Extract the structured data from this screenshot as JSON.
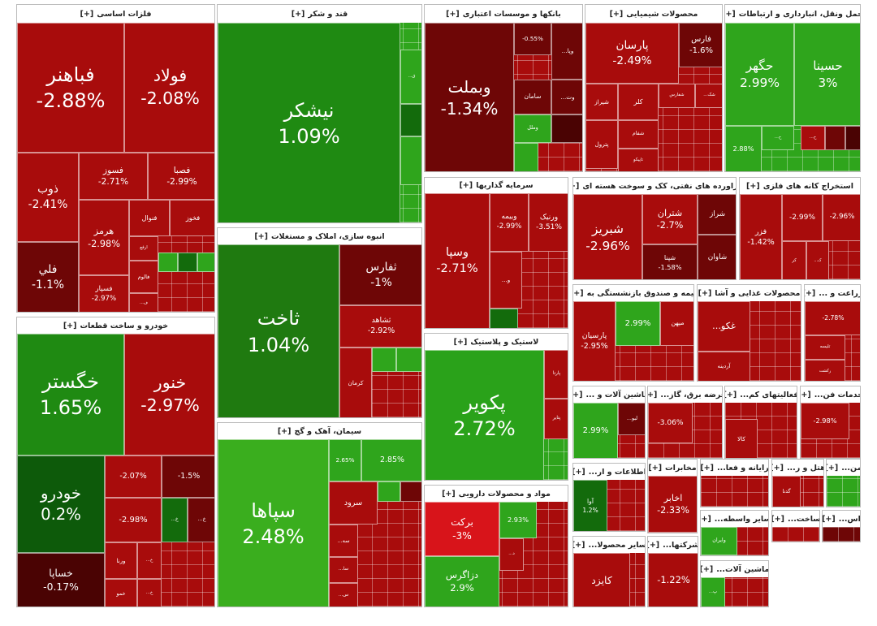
{
  "expand_label": "[+]",
  "sectors": [
    {
      "title": "فلزات اساسی",
      "tiles": [
        {
          "name": "فباهنر",
          "change": "-2.88%"
        },
        {
          "name": "فولاد",
          "change": "-2.08%"
        },
        {
          "name": "ذوب",
          "change": "-2.41%"
        },
        {
          "name": "فسوز",
          "change": "-2.71%"
        },
        {
          "name": "فصبا",
          "change": "-2.99%"
        },
        {
          "name": "هرمز",
          "change": "-2.98%"
        },
        {
          "name": "فنوال"
        },
        {
          "name": "فخوز"
        },
        {
          "name": "ارفع"
        },
        {
          "name": "فالوم"
        },
        {
          "name": "فلي",
          "change": "-1.1%"
        },
        {
          "name": "فسپار",
          "change": "-2.97%"
        },
        {
          "name": "ف..."
        }
      ]
    },
    {
      "title": "خودرو و ساخت قطعات",
      "tiles": [
        {
          "name": "خگستر",
          "change": "1.65%"
        },
        {
          "name": "خنور",
          "change": "-2.97%"
        },
        {
          "name": "خودرو",
          "change": "0.2%"
        },
        {
          "name": "خساپا",
          "change": "-0.17%"
        },
        {
          "change": "-2.07%"
        },
        {
          "change": "-1.5%"
        },
        {
          "change": "-2.98%"
        },
        {
          "name": "خ..."
        },
        {
          "name": "خ..."
        },
        {
          "name": "ورنا"
        },
        {
          "name": "خ..."
        },
        {
          "name": "خمو"
        },
        {
          "name": "خ..."
        }
      ]
    },
    {
      "title": "قند و شکر",
      "tiles": [
        {
          "name": "نیشکر",
          "change": "1.09%"
        },
        {
          "name": "ق..."
        }
      ]
    },
    {
      "title": "انبوه سازی، املاک و مستغلات",
      "tiles": [
        {
          "name": "ثاخت",
          "change": "1.04%"
        },
        {
          "name": "ثفارس",
          "change": "-1%"
        },
        {
          "name": "ثشاهد",
          "change": "-2.92%"
        },
        {
          "name": "کرمان"
        }
      ]
    },
    {
      "title": "سیمان، آهک و گچ",
      "tiles": [
        {
          "name": "سپاها",
          "change": "2.48%"
        },
        {
          "change": "2.65%"
        },
        {
          "change": "2.85%"
        },
        {
          "name": "سرود"
        },
        {
          "name": "سه..."
        },
        {
          "name": "سا..."
        },
        {
          "name": "س..."
        }
      ]
    },
    {
      "title": "بانکها و موسسات اعتباری",
      "tiles": [
        {
          "name": "وبملت",
          "change": "-1.34%"
        },
        {
          "change": "-0.55%"
        },
        {
          "name": "وپا..."
        },
        {
          "name": "سامان"
        },
        {
          "name": "وت..."
        },
        {
          "name": "وملل"
        }
      ]
    },
    {
      "title": "محصولات شیمیایی",
      "tiles": [
        {
          "name": "پارسان",
          "change": "-2.49%"
        },
        {
          "name": "فارس",
          "change": "-1.6%"
        },
        {
          "name": "شیراز"
        },
        {
          "name": "کلر"
        },
        {
          "name": "شفارس"
        },
        {
          "name": "شک..."
        },
        {
          "name": "شفام"
        },
        {
          "name": "پترول"
        },
        {
          "name": "تاپیکو"
        }
      ]
    },
    {
      "title": "حمل ونقل، انبارداری و ارتباطات",
      "tiles": [
        {
          "name": "حگهر",
          "change": "2.99%"
        },
        {
          "name": "حسینا",
          "change": "3%"
        },
        {
          "change": "2.88%"
        },
        {
          "name": "ح..."
        },
        {
          "name": "ح..."
        }
      ]
    },
    {
      "title": "سرمایه گذاریها",
      "tiles": [
        {
          "name": "وسپا",
          "change": "-2.71%"
        },
        {
          "name": "وبیمه",
          "change": "-2.99%"
        },
        {
          "name": "ورنیک",
          "change": "-3.51%"
        },
        {
          "name": "و..."
        }
      ]
    },
    {
      "title": "لاستیک و پلاستیک",
      "tiles": [
        {
          "name": "پکویر",
          "change": "2.72%"
        },
        {
          "name": "پارتا"
        },
        {
          "name": "پتایر"
        }
      ]
    },
    {
      "title": "مواد و محصولات دارویی",
      "tiles": [
        {
          "name": "برکت",
          "change": "-3%"
        },
        {
          "name": "دزاگرس",
          "change": "2.9%"
        },
        {
          "change": "2.93%"
        },
        {
          "name": "د..."
        }
      ]
    },
    {
      "title": "فراورده های نفتی، کک و سوخت هسته ای",
      "tiles": [
        {
          "name": "شبریز",
          "change": "-2.96%"
        },
        {
          "name": "شتران",
          "change": "-2.7%"
        },
        {
          "name": "شپنا",
          "change": "-1.58%"
        },
        {
          "name": "شراز"
        },
        {
          "name": "شاوان"
        }
      ]
    },
    {
      "title": "استخراج کانه های فلزی",
      "tiles": [
        {
          "name": "فزر",
          "change": "-1.42%"
        },
        {
          "change": "-2.99%"
        },
        {
          "change": "-2.96%"
        },
        {
          "name": "کر"
        },
        {
          "name": "ک..."
        }
      ]
    },
    {
      "title": "بیمه و صندوق بازنشستگی به",
      "tiles": [
        {
          "name": "پارسیان",
          "change": "-2.95%"
        },
        {
          "change": "2.99%"
        },
        {
          "name": "میهن"
        }
      ]
    },
    {
      "title": "محصولات غذایی و آشا",
      "tiles": [
        {
          "name": "غکو..."
        },
        {
          "name": "آردینه"
        }
      ]
    },
    {
      "title": "زراعت و ...",
      "tiles": [
        {
          "change": "-2.78%"
        },
        {
          "name": "تلیسه"
        },
        {
          "name": "زکشت"
        }
      ]
    },
    {
      "title": "ماشین آلات و ...",
      "tiles": [
        {
          "change": "2.99%"
        },
        {
          "name": "لبو..."
        }
      ]
    },
    {
      "title": "عرضه برق، گاز...",
      "tiles": [
        {
          "change": "-3.06%"
        }
      ]
    },
    {
      "title": "فعالیتهای کم...",
      "tiles": [
        {
          "name": "کالا"
        }
      ]
    },
    {
      "title": "خدمات فن...",
      "tiles": [
        {
          "change": "-2.98%"
        }
      ]
    },
    {
      "title": "اطلاعات و ار...",
      "tiles": [
        {
          "name": "آوا",
          "change": "1.2%"
        }
      ]
    },
    {
      "title": "مخابرات",
      "tiles": [
        {
          "name": "اخابر",
          "change": "-2.33%"
        }
      ]
    },
    {
      "title": "رایانه و فعا...",
      "tiles": []
    },
    {
      "title": "هتل و ر...",
      "tiles": [
        {
          "name": "گدنا"
        }
      ]
    },
    {
      "title": "من...",
      "tiles": []
    },
    {
      "title": "سایر واسطه...",
      "tiles": [
        {
          "name": "وایران"
        }
      ]
    },
    {
      "title": "ساخت...",
      "tiles": []
    },
    {
      "title": "اس...",
      "tiles": []
    },
    {
      "title": "سایر محصولا...",
      "tiles": [
        {
          "name": "کایزد"
        }
      ]
    },
    {
      "title": "شرکتها...",
      "tiles": [
        {
          "change": "-1.22%"
        }
      ]
    },
    {
      "title": "ماشین آلات...",
      "tiles": [
        {
          "name": "پ..."
        }
      ]
    }
  ]
}
